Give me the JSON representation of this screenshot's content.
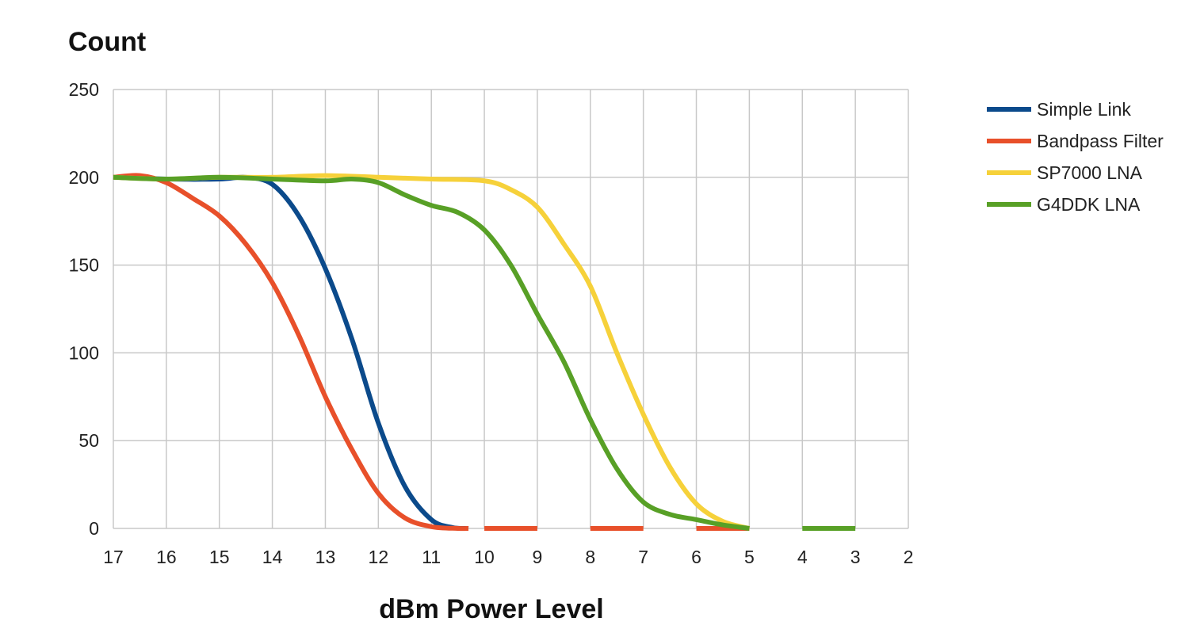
{
  "chart_data": {
    "type": "line",
    "title": "",
    "ylabel": "Count",
    "xlabel": "dBm Power Level",
    "xlim": [
      17,
      2
    ],
    "ylim": [
      0,
      250
    ],
    "x_reversed": true,
    "x_ticks": [
      17,
      16,
      15,
      14,
      13,
      12,
      11,
      10,
      9,
      8,
      7,
      6,
      5,
      4,
      3,
      2
    ],
    "y_ticks": [
      0,
      50,
      100,
      150,
      200,
      250
    ],
    "grid": true,
    "legend_position": "right",
    "series": [
      {
        "name": "Simple Link",
        "color": "#0b4a8b",
        "segments": [
          [
            [
              17,
              200
            ],
            [
              16,
              199
            ],
            [
              15,
              199
            ],
            [
              14.5,
              200
            ],
            [
              14,
              196
            ],
            [
              13.5,
              178
            ],
            [
              13,
              148
            ],
            [
              12.5,
              108
            ],
            [
              12,
              60
            ],
            [
              11.5,
              24
            ],
            [
              11,
              5
            ],
            [
              10.6,
              0.5
            ],
            [
              10.3,
              0
            ]
          ]
        ]
      },
      {
        "name": "Bandpass Filter",
        "color": "#e8502a",
        "segments": [
          [
            [
              17,
              200
            ],
            [
              16.5,
              201
            ],
            [
              16,
              197
            ],
            [
              15.5,
              188
            ],
            [
              15,
              178
            ],
            [
              14.5,
              162
            ],
            [
              14,
              140
            ],
            [
              13.5,
              110
            ],
            [
              13,
              75
            ],
            [
              12.5,
              45
            ],
            [
              12,
              20
            ],
            [
              11.5,
              6
            ],
            [
              11,
              1
            ],
            [
              10.5,
              0
            ],
            [
              10.3,
              0
            ]
          ],
          [
            [
              10,
              0
            ],
            [
              9,
              0
            ]
          ],
          [
            [
              8,
              0
            ],
            [
              7,
              0
            ]
          ],
          [
            [
              6,
              0
            ],
            [
              5,
              0
            ]
          ]
        ]
      },
      {
        "name": "SP7000 LNA",
        "color": "#f6d13a",
        "segments": [
          [
            [
              17,
              200
            ],
            [
              16,
              199
            ],
            [
              15,
              200
            ],
            [
              14,
              200
            ],
            [
              13,
              201
            ],
            [
              12,
              200
            ],
            [
              11,
              199
            ],
            [
              10,
              198
            ],
            [
              9.5,
              193
            ],
            [
              9,
              183
            ],
            [
              8.5,
              162
            ],
            [
              8,
              138
            ],
            [
              7.5,
              100
            ],
            [
              7,
              65
            ],
            [
              6.5,
              35
            ],
            [
              6,
              14
            ],
            [
              5.5,
              4
            ],
            [
              5,
              0
            ]
          ]
        ]
      },
      {
        "name": "G4DDK LNA",
        "color": "#58a026",
        "segments": [
          [
            [
              17,
              200
            ],
            [
              16,
              199
            ],
            [
              15,
              200
            ],
            [
              14,
              199
            ],
            [
              13,
              198
            ],
            [
              12.5,
              199
            ],
            [
              12,
              197
            ],
            [
              11.5,
              190
            ],
            [
              11,
              184
            ],
            [
              10.5,
              180
            ],
            [
              10,
              170
            ],
            [
              9.5,
              150
            ],
            [
              9,
              122
            ],
            [
              8.5,
              95
            ],
            [
              8,
              62
            ],
            [
              7.5,
              34
            ],
            [
              7,
              15
            ],
            [
              6.5,
              8
            ],
            [
              6,
              5
            ],
            [
              5.5,
              2
            ],
            [
              5,
              0
            ]
          ],
          [
            [
              4,
              0
            ],
            [
              3,
              0
            ]
          ]
        ]
      }
    ]
  }
}
